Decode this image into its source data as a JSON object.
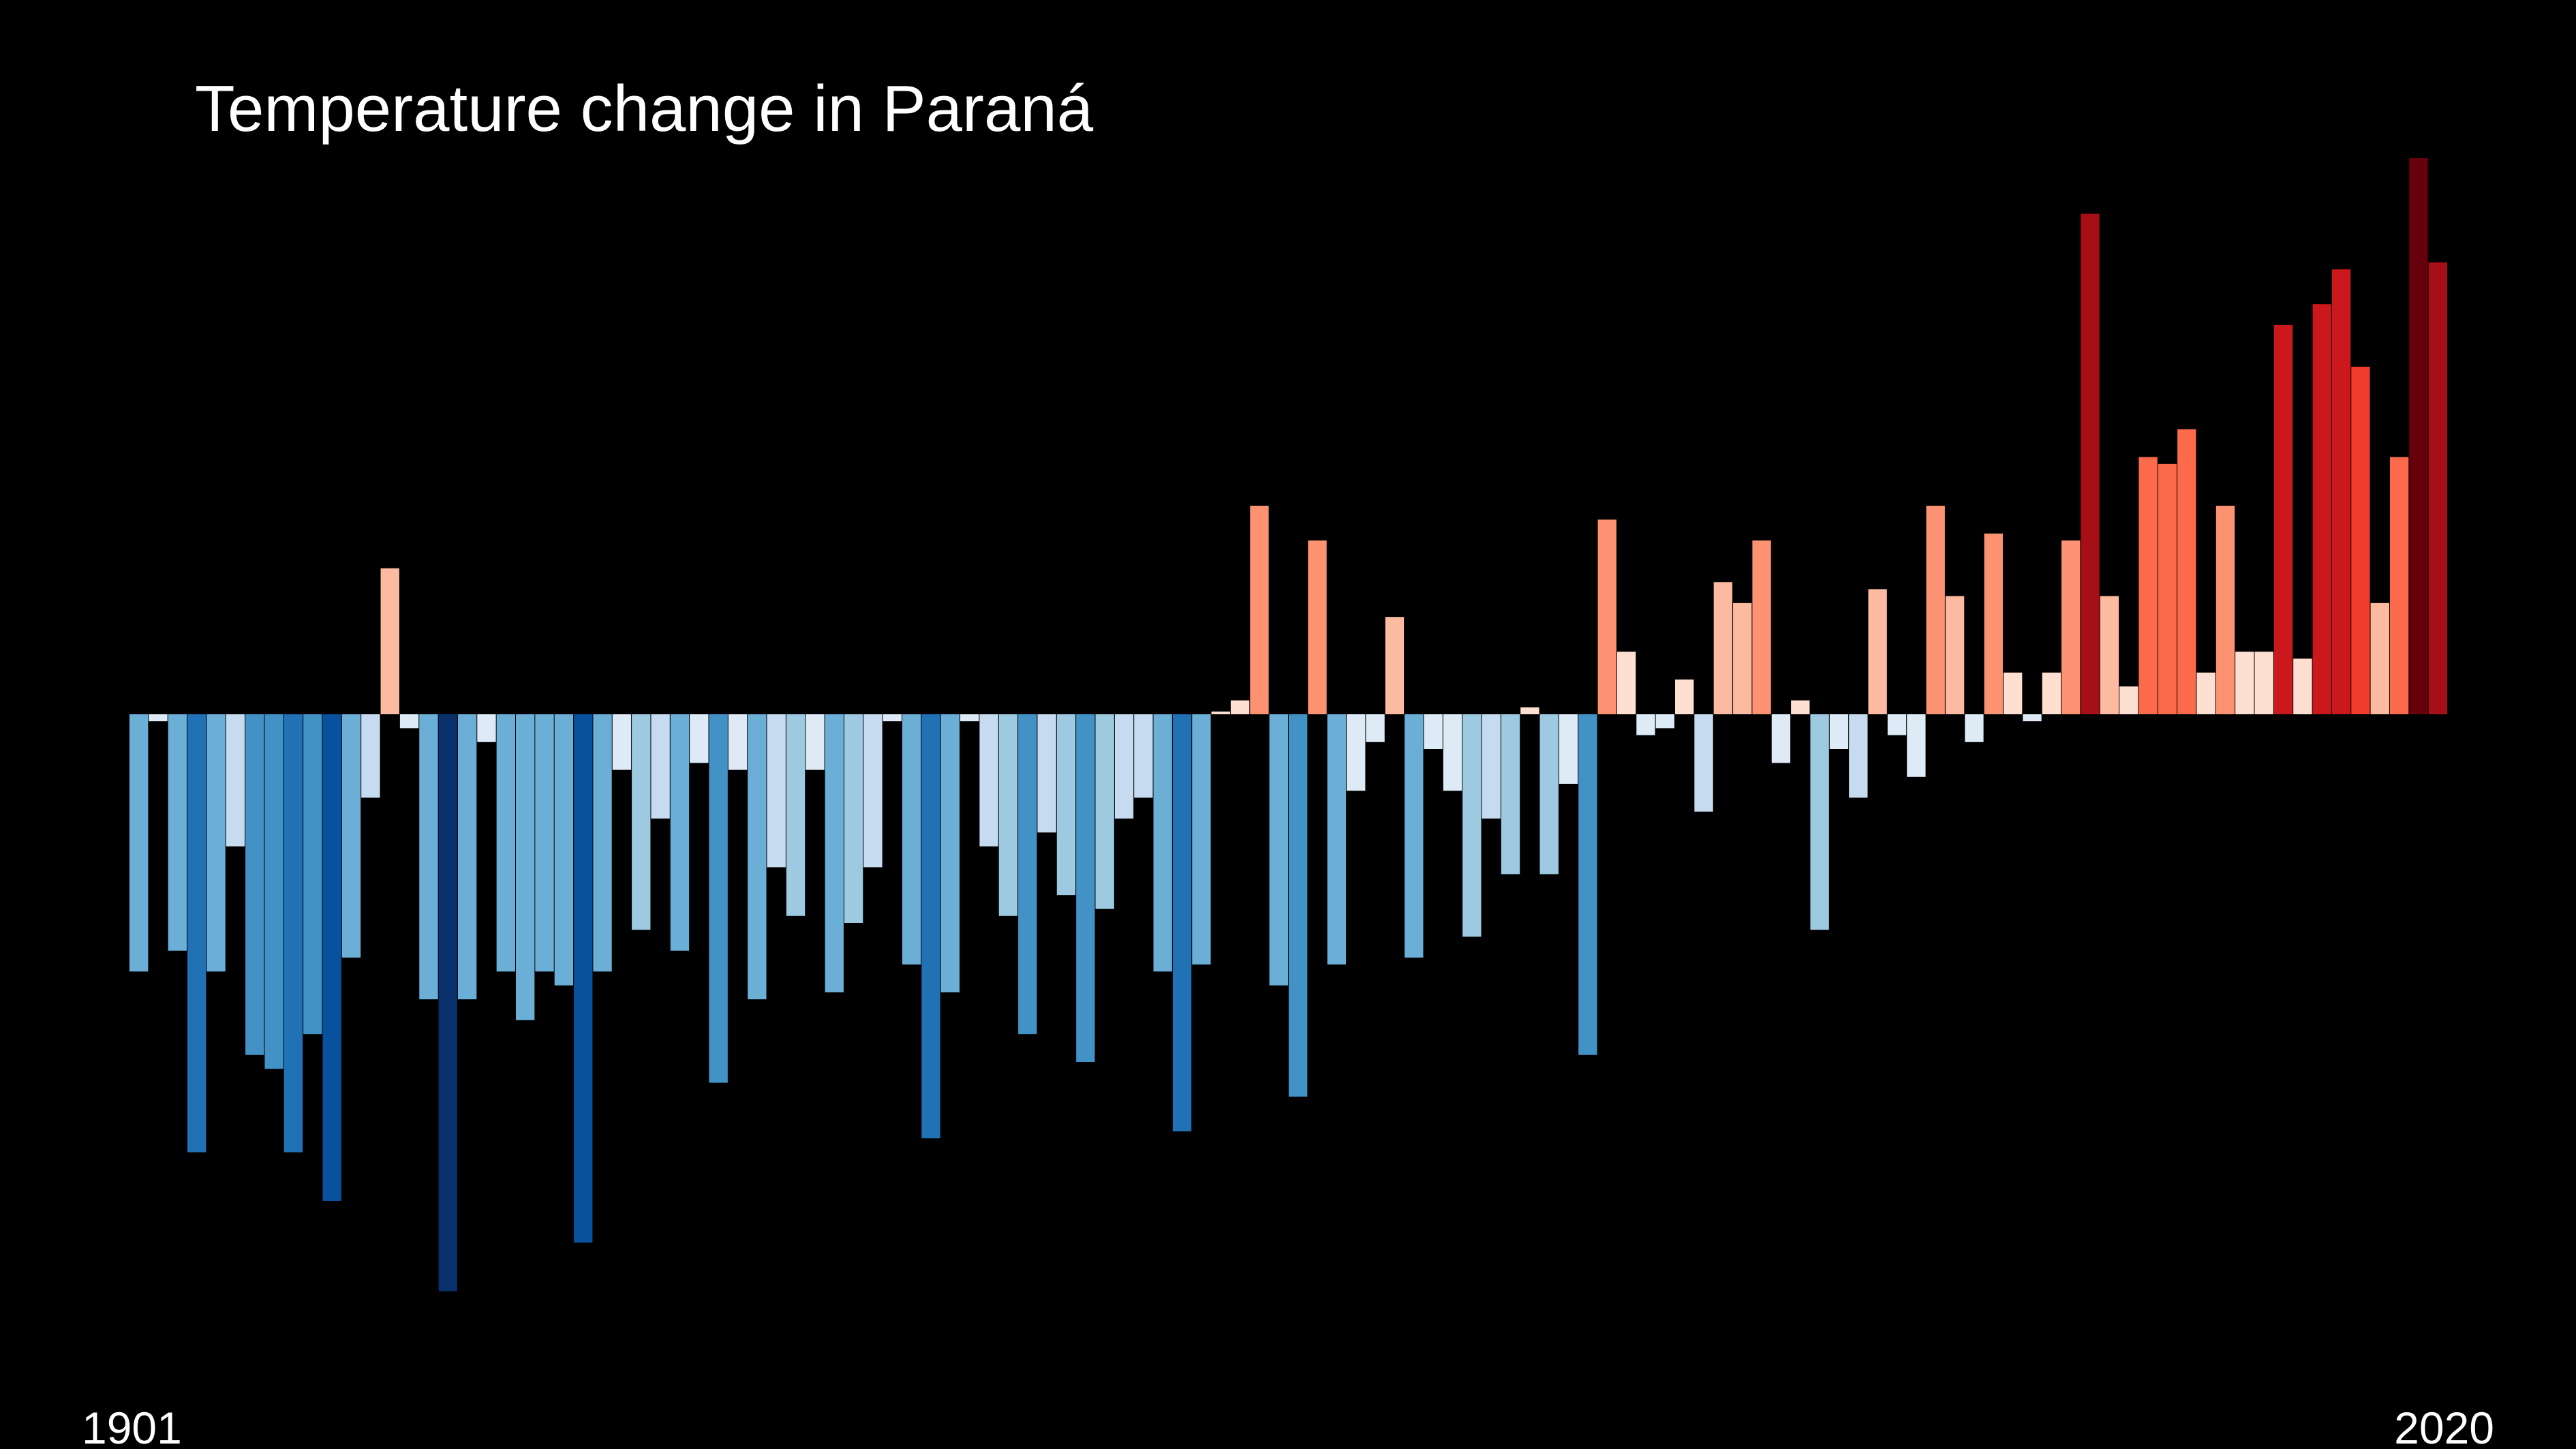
{
  "chart_data": {
    "type": "bar",
    "title": "Temperature change in Paraná",
    "xlabel": "",
    "ylabel": "",
    "start_year": "1901",
    "end_year": "2020",
    "baseline": 0,
    "ylim": [
      -0.83,
      0.8
    ],
    "grid": false,
    "legend": "none",
    "x": [
      1901,
      1902,
      1903,
      1904,
      1905,
      1906,
      1907,
      1908,
      1909,
      1910,
      1911,
      1912,
      1913,
      1914,
      1915,
      1916,
      1917,
      1918,
      1919,
      1920,
      1921,
      1922,
      1923,
      1924,
      1925,
      1926,
      1927,
      1928,
      1929,
      1930,
      1931,
      1932,
      1933,
      1934,
      1935,
      1936,
      1937,
      1938,
      1939,
      1940,
      1941,
      1942,
      1943,
      1944,
      1945,
      1946,
      1947,
      1948,
      1949,
      1950,
      1951,
      1952,
      1953,
      1954,
      1955,
      1956,
      1957,
      1958,
      1959,
      1960,
      1961,
      1962,
      1963,
      1964,
      1965,
      1966,
      1967,
      1968,
      1969,
      1970,
      1971,
      1972,
      1973,
      1974,
      1975,
      1976,
      1977,
      1978,
      1979,
      1980,
      1981,
      1982,
      1983,
      1984,
      1985,
      1986,
      1987,
      1988,
      1989,
      1990,
      1991,
      1992,
      1993,
      1994,
      1995,
      1996,
      1997,
      1998,
      1999,
      2000,
      2001,
      2002,
      2003,
      2004,
      2005,
      2006,
      2007,
      2008,
      2009,
      2010,
      2011,
      2012,
      2013,
      2014,
      2015,
      2016,
      2017,
      2018,
      2019,
      2020
    ],
    "values": [
      -0.37,
      -0.01,
      -0.34,
      -0.63,
      -0.37,
      -0.19,
      -0.49,
      -0.51,
      -0.63,
      -0.46,
      -0.7,
      -0.35,
      -0.12,
      0.21,
      -0.02,
      -0.41,
      -0.83,
      -0.41,
      -0.04,
      -0.37,
      -0.44,
      -0.37,
      -0.39,
      -0.76,
      -0.37,
      -0.08,
      -0.31,
      -0.15,
      -0.34,
      -0.07,
      -0.53,
      -0.08,
      -0.41,
      -0.22,
      -0.29,
      -0.08,
      -0.4,
      -0.3,
      -0.22,
      -0.01,
      -0.36,
      -0.61,
      -0.4,
      -0.01,
      -0.19,
      -0.29,
      -0.46,
      -0.17,
      -0.26,
      -0.5,
      -0.28,
      -0.15,
      -0.12,
      -0.37,
      -0.6,
      -0.36,
      0.0,
      0.02,
      0.3,
      -0.39,
      -0.55,
      0.25,
      -0.36,
      -0.11,
      -0.04,
      0.14,
      -0.35,
      -0.05,
      -0.11,
      -0.32,
      -0.15,
      -0.23,
      0.01,
      -0.23,
      -0.1,
      -0.49,
      0.28,
      0.09,
      -0.03,
      -0.02,
      0.05,
      -0.14,
      0.19,
      0.16,
      0.25,
      -0.07,
      0.02,
      -0.31,
      -0.05,
      -0.12,
      0.18,
      -0.03,
      -0.09,
      0.3,
      0.17,
      -0.04,
      0.26,
      0.06,
      -0.01,
      0.06,
      0.25,
      0.72,
      0.17,
      0.04,
      0.37,
      0.36,
      0.41,
      0.06,
      0.3,
      0.09,
      0.09,
      0.56,
      0.08,
      0.59,
      0.64,
      0.5,
      0.16,
      0.37,
      0.8,
      0.65
    ],
    "colors": {
      "background": "#000000",
      "text": "#ffffff",
      "scale": [
        "#08306b",
        "#08519c",
        "#2171b5",
        "#4292c6",
        "#6baed6",
        "#9ecae1",
        "#c6dbef",
        "#deebf7",
        "#fee0d2",
        "#fcbba1",
        "#fc9272",
        "#fb6a4a",
        "#ef3b2c",
        "#cb181d",
        "#a50f15",
        "#67000d"
      ]
    }
  }
}
